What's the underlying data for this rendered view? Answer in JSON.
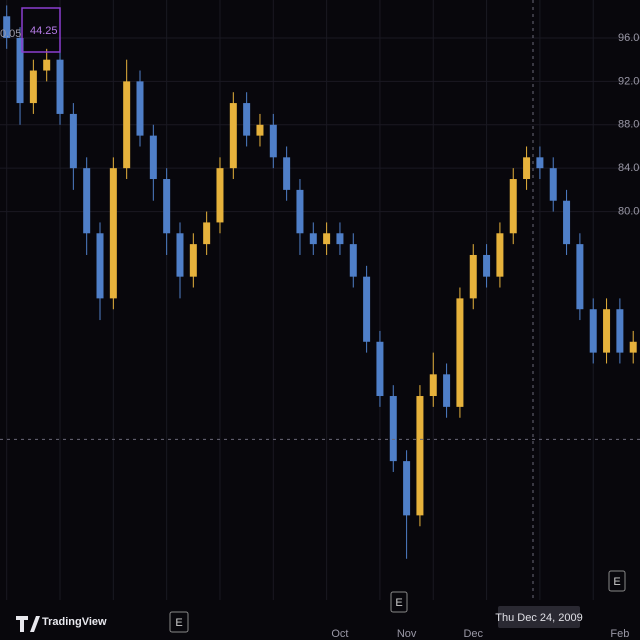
{
  "chart_data": {
    "type": "candlestick",
    "brand": "TradingView",
    "price_labels": [
      "0.05",
      "44.25"
    ],
    "crosshair_label": "Thu Dec 24, 2009",
    "crosshair_price": 59,
    "event_labels": [
      "E",
      "E",
      "E"
    ],
    "up_color": "#e6b23c",
    "down_color": "#4f7fc8",
    "categories": [
      null,
      null,
      null,
      null,
      null,
      null,
      null,
      null,
      null,
      null,
      null,
      null,
      null,
      null,
      null,
      null,
      null,
      null,
      null,
      null,
      null,
      null,
      null,
      null,
      null,
      "Oct",
      null,
      null,
      null,
      null,
      "Nov",
      null,
      null,
      null,
      null,
      "Dec",
      null,
      null,
      null,
      null,
      null,
      null,
      null,
      null,
      null,
      null,
      "Feb",
      null
    ],
    "open": [
      98,
      96,
      90,
      93,
      94,
      89,
      84,
      78,
      72,
      84,
      92,
      87,
      83,
      78,
      74,
      77,
      79,
      84,
      90,
      87,
      88,
      85,
      82,
      78,
      77,
      78,
      77,
      74,
      68,
      63,
      57,
      52,
      63,
      65,
      62,
      72,
      76,
      74,
      78,
      83,
      85,
      84,
      81,
      77,
      71,
      67,
      71,
      67
    ],
    "high": [
      99,
      97,
      94,
      95,
      95,
      90,
      85,
      79,
      85,
      94,
      93,
      88,
      84,
      79,
      78,
      80,
      85,
      91,
      91,
      89,
      89,
      86,
      83,
      79,
      79,
      79,
      78,
      75,
      69,
      64,
      58,
      64,
      67,
      66,
      73,
      77,
      77,
      79,
      84,
      86,
      86,
      85,
      82,
      78,
      72,
      72,
      72,
      69
    ],
    "low": [
      95,
      88,
      89,
      92,
      88,
      82,
      76,
      70,
      71,
      83,
      86,
      81,
      76,
      72,
      73,
      76,
      78,
      83,
      86,
      86,
      84,
      81,
      76,
      76,
      76,
      76,
      73,
      67,
      62,
      56,
      48,
      51,
      62,
      61,
      61,
      71,
      73,
      73,
      77,
      82,
      83,
      80,
      76,
      70,
      66,
      66,
      66,
      66
    ],
    "close": [
      96,
      90,
      93,
      94,
      89,
      84,
      78,
      72,
      84,
      92,
      87,
      83,
      78,
      74,
      77,
      79,
      84,
      90,
      87,
      88,
      85,
      82,
      78,
      77,
      78,
      77,
      74,
      68,
      63,
      57,
      52,
      63,
      65,
      62,
      72,
      76,
      74,
      78,
      83,
      85,
      84,
      81,
      77,
      71,
      67,
      71,
      67,
      68
    ],
    "ylim": [
      44.2,
      99.5
    ],
    "yticks": [
      {
        "value": 96,
        "label": "96.00"
      },
      {
        "value": 92,
        "label": "92.00"
      },
      {
        "value": 88,
        "label": "88.00"
      },
      {
        "value": 84,
        "label": "84.00"
      },
      {
        "value": 80,
        "label": "80.00"
      }
    ],
    "grid": true
  }
}
